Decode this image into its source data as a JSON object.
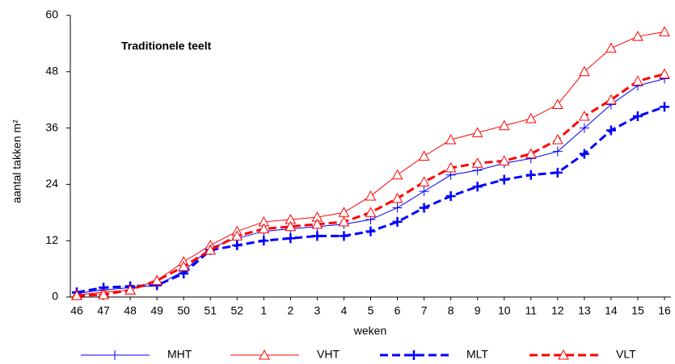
{
  "chart_data": {
    "type": "line",
    "annotation": "Traditionele teelt",
    "x_label": "weken",
    "y_label": "aantal takken m²",
    "categories": [
      "46",
      "47",
      "48",
      "49",
      "50",
      "51",
      "52",
      "1",
      "2",
      "3",
      "4",
      "5",
      "6",
      "7",
      "8",
      "9",
      "10",
      "11",
      "12",
      "13",
      "14",
      "15",
      "16"
    ],
    "ylim": [
      0,
      60
    ],
    "yticks": [
      0,
      12,
      24,
      36,
      48,
      60
    ],
    "grid": false,
    "legend": "bottom",
    "series": [
      {
        "name": "MHT",
        "color": "#0000ff",
        "marker": "plus",
        "line_style": "solid",
        "line_width": 1,
        "values": [
          0.8,
          1.5,
          2,
          2.5,
          5.5,
          10.5,
          12.5,
          14,
          14.5,
          15,
          15.5,
          16.5,
          19,
          22.5,
          26,
          27,
          28.5,
          29.5,
          31,
          36,
          41,
          45,
          46.5
        ]
      },
      {
        "name": "VHT",
        "color": "#ff0000",
        "marker": "triangle",
        "line_style": "solid",
        "line_width": 1,
        "values": [
          0.5,
          1,
          1.5,
          3.5,
          7.5,
          11,
          14,
          16,
          16.5,
          17,
          18,
          21.5,
          26,
          30,
          33.5,
          35,
          36.5,
          38,
          41,
          48,
          53,
          55.5,
          56.5
        ]
      },
      {
        "name": "MLT",
        "color": "#0000ff",
        "marker": "plus",
        "line_style": "dashed",
        "line_width": 3,
        "values": [
          1,
          2,
          2.3,
          2.5,
          5,
          10,
          11,
          12,
          12.5,
          13,
          13,
          14,
          16,
          19,
          21.5,
          23.5,
          25,
          26,
          26.5,
          30.5,
          35.5,
          38.5,
          40.5
        ]
      },
      {
        "name": "VLT",
        "color": "#ff0000",
        "marker": "triangle",
        "line_style": "dashed",
        "line_width": 3,
        "values": [
          0.3,
          0.5,
          1.5,
          3.5,
          6.5,
          10,
          13,
          14.5,
          15,
          15.5,
          16,
          18,
          21,
          24.5,
          27.5,
          28.5,
          29,
          30.5,
          33.5,
          38.5,
          42,
          46,
          47.5
        ]
      }
    ]
  }
}
